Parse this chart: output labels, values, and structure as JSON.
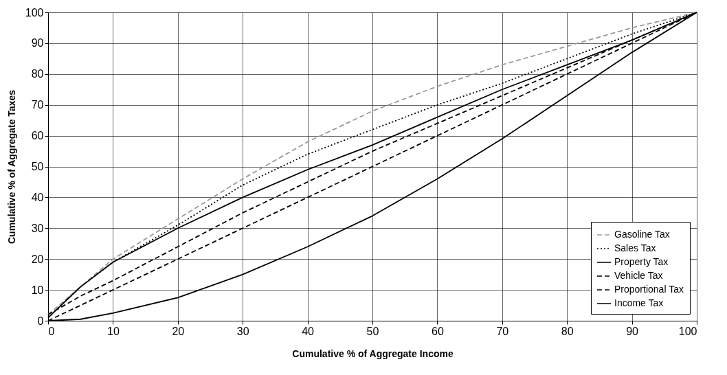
{
  "chart_data": {
    "type": "line",
    "xlabel": "Cumulative % of Aggregate Income",
    "ylabel": "Cumulative % of Aggregate Taxes",
    "x": [
      0,
      5,
      10,
      20,
      30,
      40,
      50,
      60,
      70,
      80,
      90,
      100
    ],
    "series": [
      {
        "name": "Gasoline Tax",
        "color": "#9a9a9a",
        "line_style": "dashed",
        "values": [
          2,
          11,
          20,
          33,
          46,
          58,
          68,
          76,
          83,
          89,
          95,
          100
        ]
      },
      {
        "name": "Sales Tax",
        "color": "#000000",
        "line_style": "dotted",
        "values": [
          1,
          11,
          19,
          31,
          44,
          54,
          62,
          70,
          77,
          85,
          93,
          100
        ]
      },
      {
        "name": "Property Tax",
        "color": "#000000",
        "line_style": "solid",
        "values": [
          1,
          11,
          19,
          30,
          40,
          49,
          57,
          66,
          75,
          83,
          91,
          100
        ]
      },
      {
        "name": "Vehicle Tax",
        "color": "#000000",
        "line_style": "dashed",
        "values": [
          2,
          8,
          13,
          24,
          35,
          45,
          55,
          64,
          73,
          82,
          91,
          100
        ]
      },
      {
        "name": "Proportional Tax",
        "color": "#000000",
        "line_style": "dashed",
        "values": [
          0,
          5,
          10,
          20,
          30,
          40,
          50,
          60,
          70,
          80,
          90,
          100
        ]
      },
      {
        "name": "Income Tax",
        "color": "#000000",
        "line_style": "solid",
        "values": [
          0,
          0.5,
          2.5,
          7.5,
          15,
          24,
          34,
          46,
          59,
          73,
          87,
          100
        ]
      }
    ],
    "xlim": [
      0,
      100
    ],
    "ylim": [
      0,
      100
    ],
    "xticks": [
      0,
      10,
      20,
      30,
      40,
      50,
      60,
      70,
      80,
      90,
      100
    ],
    "yticks": [
      0,
      10,
      20,
      30,
      40,
      50,
      60,
      70,
      80,
      90,
      100
    ],
    "grid": true,
    "legend": "bottom right",
    "marker": "none"
  }
}
